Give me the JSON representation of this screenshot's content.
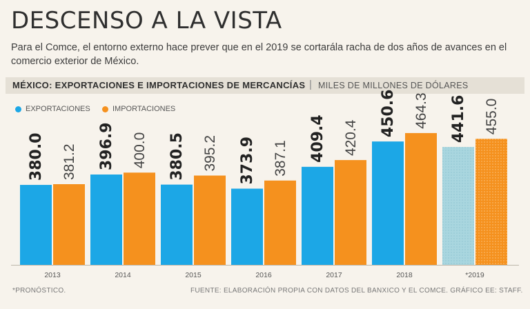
{
  "header": {
    "title": "DESCENSO A LA VISTA",
    "subtitle": "Para el Comce, el entorno externo hace prever que en el 2019 se cortarála racha de dos años de avances en el comercio exterior de México."
  },
  "chart_header": {
    "title": "MÉXICO: EXPORTACIONES E IMPORTACIONES DE MERCANCÍAS",
    "separator": "|",
    "unit": "MILES DE MILLONES DE DÓLARES"
  },
  "chart_data": {
    "type": "bar",
    "title": "MÉXICO: EXPORTACIONES E IMPORTACIONES DE MERCANCÍAS",
    "ylabel": "MILES DE MILLONES DE DÓLARES",
    "categories": [
      "2013",
      "2014",
      "2015",
      "2016",
      "2017",
      "2018",
      "*2019"
    ],
    "series": [
      {
        "name": "EXPORTACIONES",
        "color": "#1ca7e6",
        "values": [
          380.0,
          396.9,
          380.5,
          373.9,
          409.4,
          450.6,
          441.6
        ],
        "labels": [
          "380.0",
          "396.9",
          "380.5",
          "373.9",
          "409.4",
          "450.6",
          "441.6"
        ]
      },
      {
        "name": "IMPORTACIONES",
        "color": "#f5911e",
        "values": [
          381.2,
          400.0,
          395.2,
          387.1,
          420.4,
          464.3,
          455.0
        ],
        "labels": [
          "381.2",
          "400.0",
          "395.2",
          "387.1",
          "420.4",
          "464.3",
          "455.0"
        ]
      }
    ],
    "forecast_category": "*2019",
    "ylim": [
      250,
      490
    ]
  },
  "footer": {
    "note": "*PRONÓSTICO.",
    "source": "FUENTE: ELABORACIÓN PROPIA CON DATOS DEL BANXICO Y EL COMCE. GRÁFICO EE: STAFF."
  },
  "colors": {
    "exports": "#1ca7e6",
    "imports": "#f5911e",
    "exports_forecast": "#a9d6df",
    "imports_forecast": "#f5911e"
  }
}
